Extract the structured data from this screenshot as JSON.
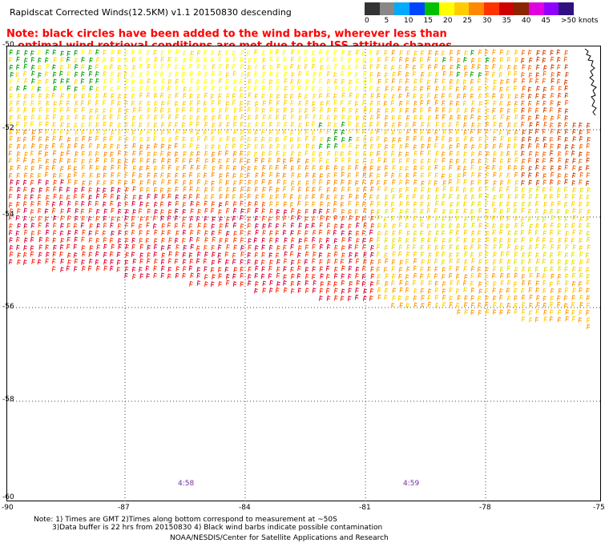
{
  "title": "Rapidscat Corrected Winds(12.5KM) v1.1 20150830 descending",
  "note_line1": "Note: black circles have been added to the wind barbs, wherever less than",
  "note_line2": "optimal wind retrieval conditions are met due to the ISS attitude changes.",
  "legend": {
    "colors": [
      "#333333",
      "#888888",
      "#00aaff",
      "#0044ff",
      "#00c000",
      "#ffff00",
      "#ffcc00",
      "#ff8800",
      "#ff3300",
      "#d00000",
      "#8b2500",
      "#e000e0",
      "#9000ff",
      "#301080"
    ],
    "labels": [
      "0",
      "5",
      "10",
      "15",
      "20",
      "25",
      "30",
      "35",
      "40",
      "45",
      ">50 knots"
    ]
  },
  "axes": {
    "x_labels": [
      "-90",
      "-87",
      "-84",
      "-81",
      "-78",
      "-75"
    ],
    "y_labels": [
      "-50",
      "-52",
      "-54",
      "-56",
      "-58",
      "-60"
    ]
  },
  "time_labels": [
    "4:58",
    "4:59"
  ],
  "footer": {
    "line1": "Note: 1) Times are GMT 2)Times along bottom correspond to measurement at ~50S",
    "line2": "3)Data buffer is 22 hrs from 20150830 4) Black wind barbs indicate possible contamination",
    "line3": "NOAA/NESDIS/Center for Satellite Applications and Research"
  }
}
